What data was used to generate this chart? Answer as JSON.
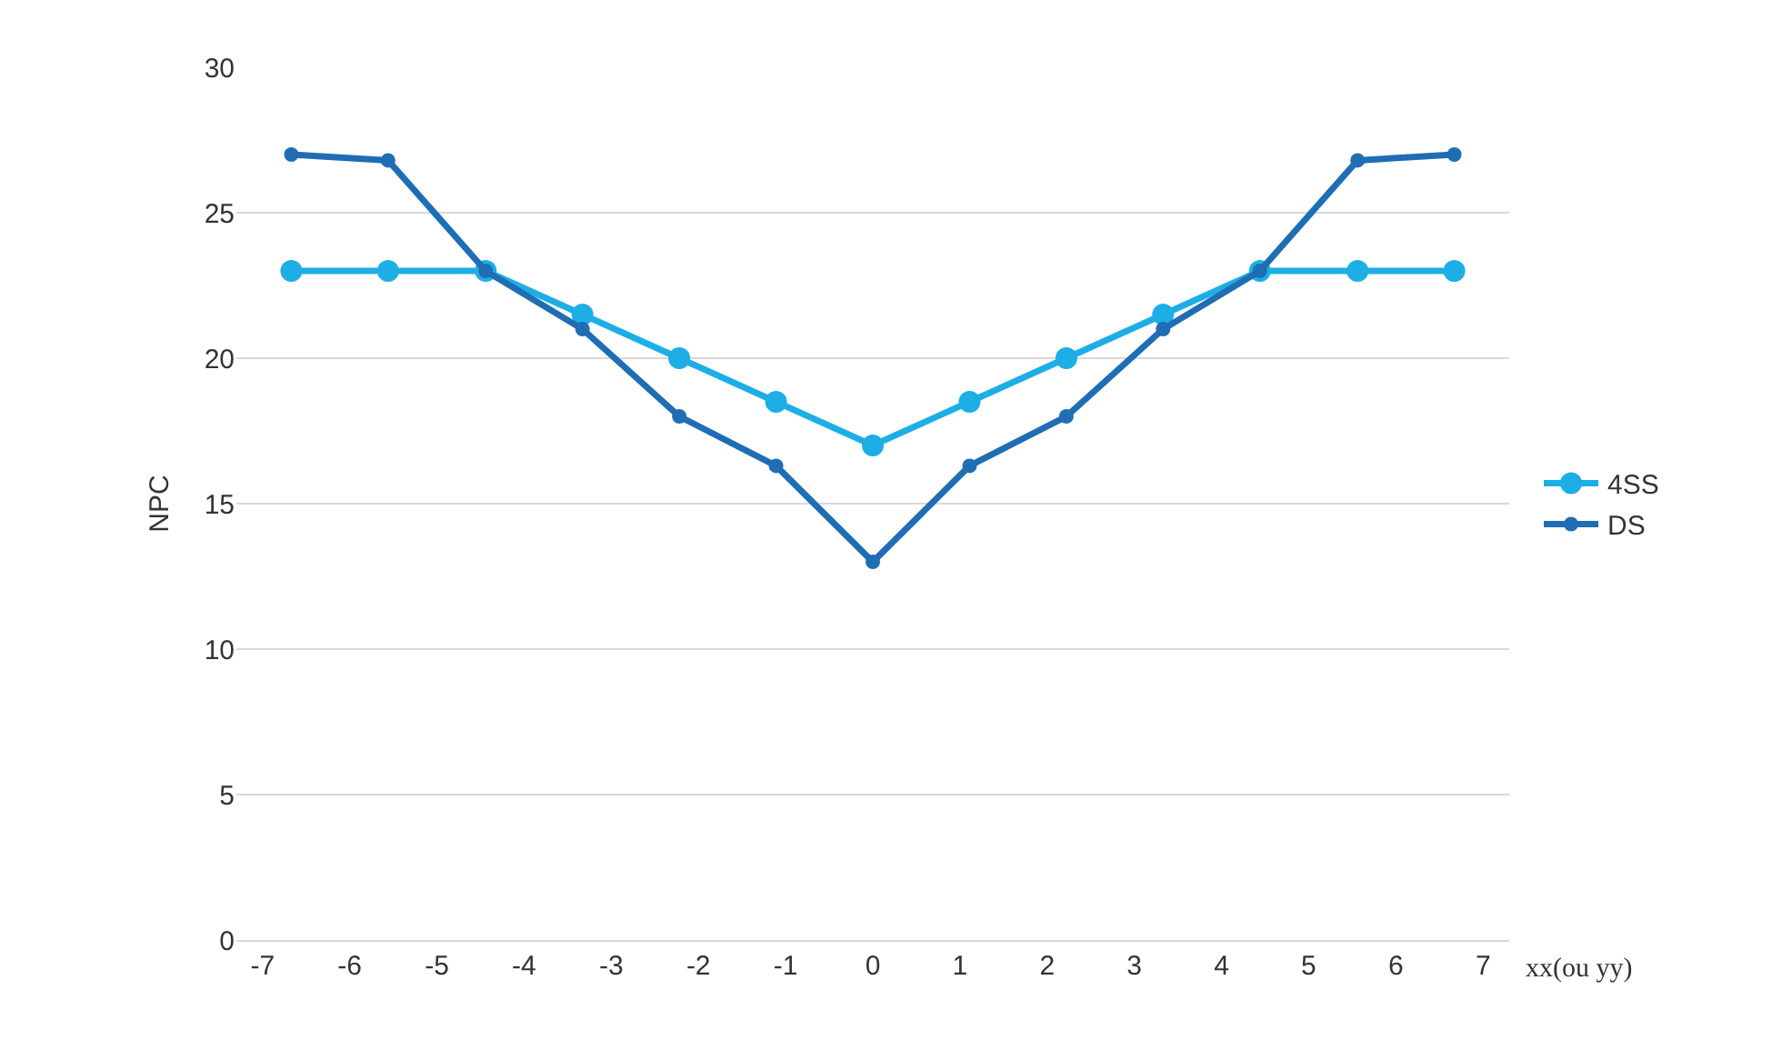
{
  "chart_data": {
    "type": "line",
    "xlabel": "xx(ou yy)",
    "ylabel": "NPC",
    "x": [
      -6.67,
      -5.56,
      -4.44,
      -3.33,
      -2.22,
      -1.11,
      0,
      1.11,
      2.22,
      3.33,
      4.44,
      5.56,
      6.67
    ],
    "series": [
      {
        "name": "4SS",
        "color": "#1eaee6",
        "values": [
          23,
          23,
          23,
          21.5,
          20,
          18.5,
          17,
          18.5,
          20,
          21.5,
          23,
          23,
          23
        ]
      },
      {
        "name": "DS",
        "color": "#1f6eb4",
        "values": [
          27,
          26.8,
          23,
          21,
          18,
          16.3,
          13,
          16.3,
          18,
          21,
          23,
          26.8,
          27
        ]
      }
    ],
    "xlim": [
      -7.3,
      7.3
    ],
    "xticks": [
      -7,
      -6,
      -5,
      -4,
      -3,
      -2,
      -1,
      0,
      1,
      2,
      3,
      4,
      5,
      6,
      7
    ],
    "ylim": [
      0,
      30
    ],
    "yticks": [
      0,
      5,
      10,
      15,
      20,
      25,
      30
    ],
    "grid": "y",
    "legend": "right",
    "marker": "circle",
    "line_style": "solid"
  }
}
